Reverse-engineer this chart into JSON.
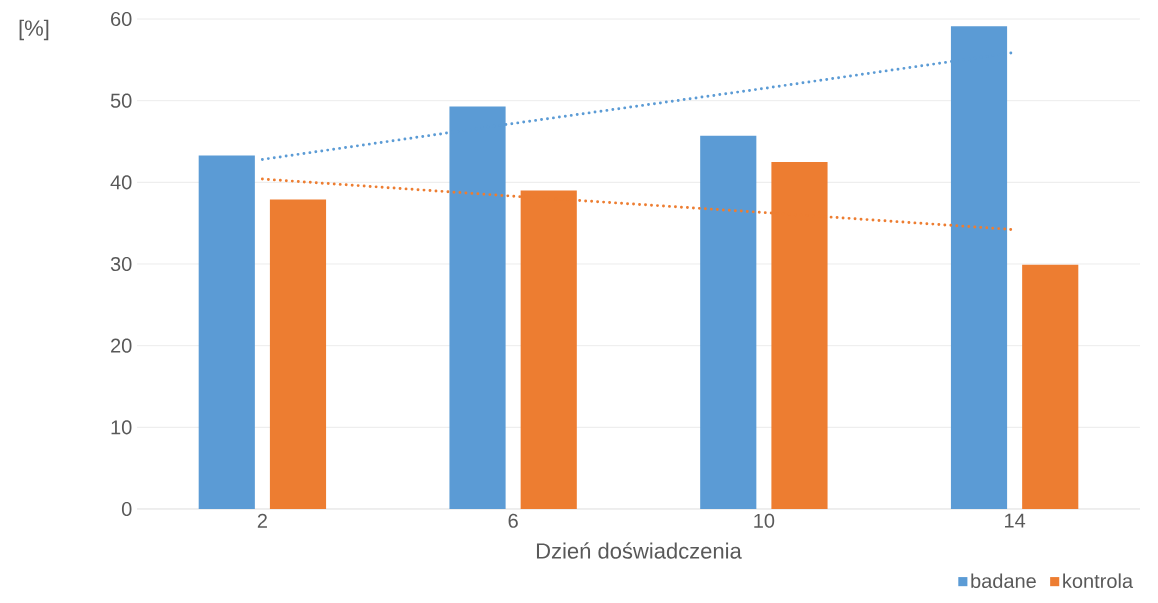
{
  "chart_data": {
    "type": "bar",
    "xlabel": "Dzień doświadczenia",
    "ylabel": "[%]",
    "categories": [
      "2",
      "6",
      "10",
      "14"
    ],
    "series": [
      {
        "name": "badane",
        "color": "#5b9bd5",
        "values": [
          43.3,
          49.3,
          45.7,
          59.1
        ]
      },
      {
        "name": "kontrola",
        "color": "#ed7d31",
        "values": [
          37.9,
          39.0,
          42.5,
          29.9
        ]
      },
      {
        "type": "line",
        "color": "#5b9bd5",
        "line_style": "dotted",
        "marker": "none",
        "values": [
          42.8,
          47.2,
          51.5,
          55.9
        ]
      },
      {
        "type": "line",
        "color": "#ed7d31",
        "line_style": "dotted",
        "marker": "none",
        "values": [
          40.4,
          38.3,
          36.3,
          34.2
        ]
      }
    ],
    "ylim": [
      0,
      60
    ],
    "yticks": [
      0,
      10,
      20,
      30,
      40,
      50,
      60
    ],
    "grid": "y",
    "legend": "bottom right"
  }
}
